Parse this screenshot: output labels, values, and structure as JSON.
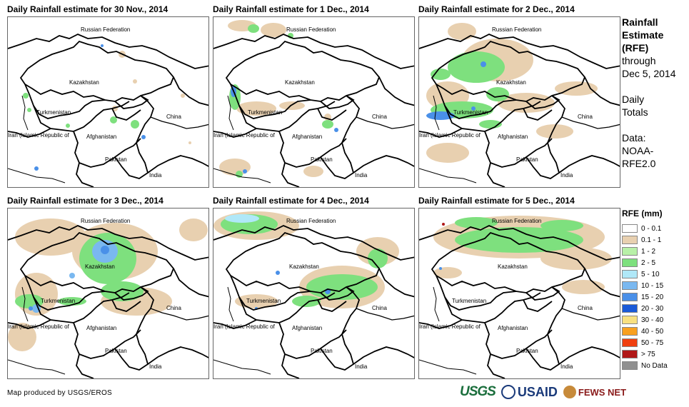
{
  "panels": [
    {
      "title": "Daily Rainfall estimate for 30 Nov., 2014"
    },
    {
      "title": "Daily Rainfall estimate for 1 Dec., 2014"
    },
    {
      "title": "Daily Rainfall estimate for 2 Dec., 2014"
    },
    {
      "title": "Daily Rainfall estimate for 3 Dec., 2014"
    },
    {
      "title": "Daily Rainfall estimate for 4 Dec., 2014"
    },
    {
      "title": "Daily Rainfall estimate for 5 Dec., 2014"
    }
  ],
  "countries": {
    "russia": "Russian Federation",
    "kazakhstan": "Kazakhstan",
    "turkmenistan": "Turkmenistan",
    "china": "China",
    "iran": "Iran  (Islamic Republic of",
    "afghanistan": "Afghanistan",
    "pakistan": "Pakistan",
    "india": "India"
  },
  "sidebar": {
    "heading1": "Rainfall",
    "heading2": "Estimate",
    "heading3": "(RFE)",
    "through": "through",
    "date": "Dec 5, 2014",
    "daily1": "Daily",
    "daily2": "Totals",
    "data1": "Data:",
    "data2": "NOAA-",
    "data3": "RFE2.0"
  },
  "legend": {
    "title": "RFE (mm)",
    "items": [
      {
        "label": "0 - 0.1",
        "color": "#ffffff"
      },
      {
        "label": "0.1 - 1",
        "color": "#e8d0b0"
      },
      {
        "label": "1 - 2",
        "color": "#b8f0a8"
      },
      {
        "label": "2 - 5",
        "color": "#7ee07e"
      },
      {
        "label": "5 - 10",
        "color": "#b0e8f8"
      },
      {
        "label": "10 - 15",
        "color": "#7ab8f0"
      },
      {
        "label": "15 - 20",
        "color": "#4a90e8"
      },
      {
        "label": "20 - 30",
        "color": "#1a5ad8"
      },
      {
        "label": "30 - 40",
        "color": "#f8e080"
      },
      {
        "label": "40 - 50",
        "color": "#f8a020"
      },
      {
        "label": "50 - 75",
        "color": "#f04010"
      },
      {
        "label": "> 75",
        "color": "#b01818"
      },
      {
        "label": "No Data",
        "color": "#909090"
      }
    ]
  },
  "footer": {
    "credit": "Map produced by USGS/EROS",
    "usgs": "USGS",
    "usaid": "USAID",
    "fews": "FEWS NET"
  }
}
